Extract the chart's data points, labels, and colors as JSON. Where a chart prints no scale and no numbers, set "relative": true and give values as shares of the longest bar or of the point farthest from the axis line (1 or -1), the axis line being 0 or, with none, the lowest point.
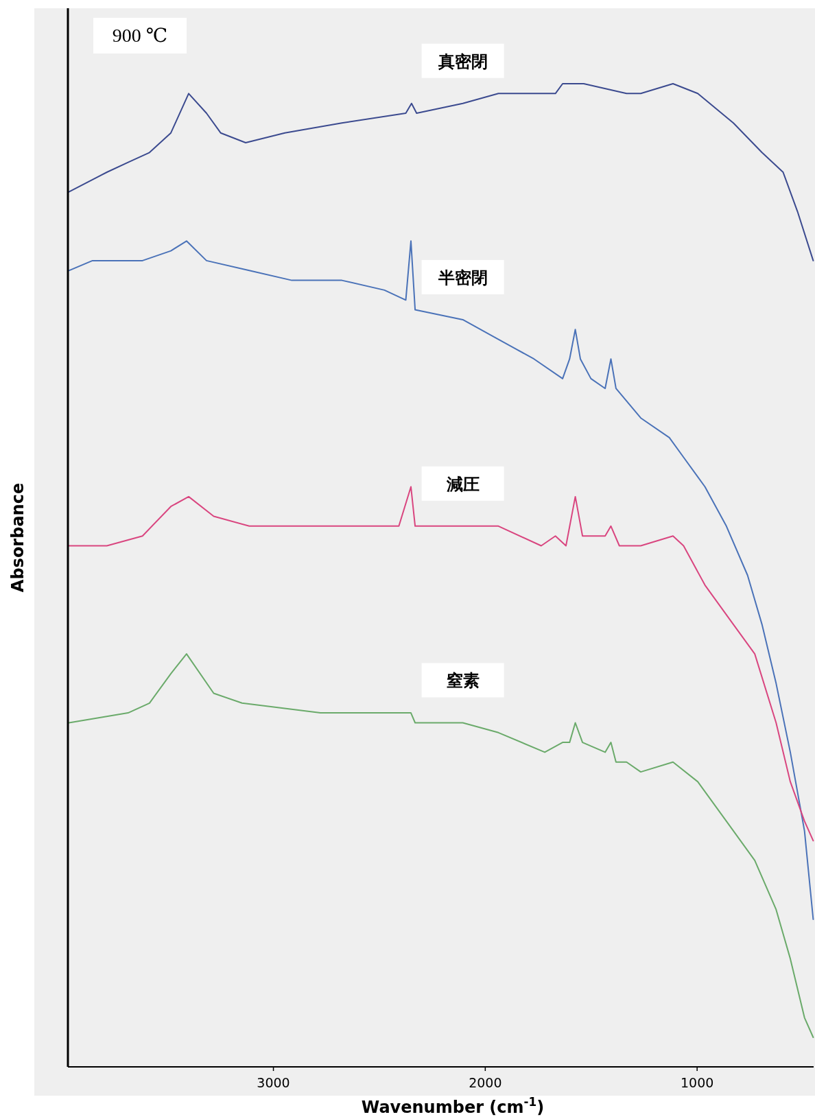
{
  "chart_data": {
    "type": "line",
    "relative": true,
    "xlabel": "Wavenumber (cm$^{-1}$)",
    "ylabel": "Absorbance",
    "annotations": [
      "900 ℃"
    ],
    "xlim": [
      3970,
      450
    ],
    "xticks": [
      3000,
      2000,
      1000
    ],
    "tick_labels": "x",
    "series": [
      {
        "name": "真密閉",
        "color": "#3b4a8f",
        "x": [
          3965,
          3786,
          3686,
          3585,
          3484,
          3400,
          3316,
          3249,
          3131,
          2946,
          2677,
          2375,
          2348,
          2324,
          2106,
          1938,
          1669,
          1635,
          1535,
          1333,
          1266,
          1114,
          997,
          829,
          694,
          594,
          526,
          452
        ],
        "values": [
          0.89,
          0.91,
          0.92,
          0.93,
          0.95,
          0.99,
          0.97,
          0.95,
          0.94,
          0.95,
          0.96,
          0.97,
          0.98,
          0.97,
          0.98,
          0.99,
          0.99,
          1.0,
          1.0,
          0.99,
          0.99,
          1.0,
          0.99,
          0.96,
          0.93,
          0.91,
          0.87,
          0.82
        ]
      },
      {
        "name": "半密閉",
        "color": "#4a72b8",
        "x": [
          3965,
          3854,
          3753,
          3618,
          3484,
          3410,
          3316,
          3114,
          2913,
          2677,
          2476,
          2375,
          2351,
          2331,
          2106,
          1938,
          1770,
          1635,
          1602,
          1575,
          1551,
          1501,
          1434,
          1407,
          1383,
          1266,
          1131,
          1064,
          963,
          862,
          762,
          694,
          627,
          560,
          493,
          452
        ],
        "values": [
          0.81,
          0.82,
          0.82,
          0.82,
          0.83,
          0.84,
          0.82,
          0.81,
          0.8,
          0.8,
          0.79,
          0.78,
          0.84,
          0.77,
          0.76,
          0.74,
          0.72,
          0.7,
          0.72,
          0.75,
          0.72,
          0.7,
          0.69,
          0.72,
          0.69,
          0.66,
          0.64,
          0.62,
          0.59,
          0.55,
          0.5,
          0.45,
          0.39,
          0.32,
          0.24,
          0.15
        ]
      },
      {
        "name": "減圧",
        "color": "#d9457f",
        "x": [
          3965,
          3786,
          3618,
          3484,
          3400,
          3282,
          3114,
          2778,
          2408,
          2351,
          2331,
          2106,
          1938,
          1736,
          1669,
          1619,
          1575,
          1541,
          1434,
          1407,
          1367,
          1266,
          1114,
          1064,
          963,
          829,
          728,
          627,
          560,
          493,
          452
        ],
        "values": [
          0.53,
          0.53,
          0.54,
          0.57,
          0.58,
          0.56,
          0.55,
          0.55,
          0.55,
          0.59,
          0.55,
          0.55,
          0.55,
          0.53,
          0.54,
          0.53,
          0.58,
          0.54,
          0.54,
          0.55,
          0.53,
          0.53,
          0.54,
          0.53,
          0.49,
          0.45,
          0.42,
          0.35,
          0.29,
          0.25,
          0.23
        ]
      },
      {
        "name": "窒素",
        "color": "#6aaa6a",
        "x": [
          3965,
          3686,
          3585,
          3484,
          3410,
          3282,
          3148,
          2778,
          2375,
          2351,
          2331,
          2106,
          1938,
          1719,
          1635,
          1602,
          1575,
          1541,
          1434,
          1407,
          1383,
          1333,
          1266,
          1114,
          997,
          862,
          728,
          627,
          560,
          493,
          452
        ],
        "values": [
          0.35,
          0.36,
          0.37,
          0.4,
          0.42,
          0.38,
          0.37,
          0.36,
          0.36,
          0.36,
          0.35,
          0.35,
          0.34,
          0.32,
          0.33,
          0.33,
          0.35,
          0.33,
          0.32,
          0.33,
          0.31,
          0.31,
          0.3,
          0.31,
          0.29,
          0.25,
          0.21,
          0.16,
          0.11,
          0.05,
          0.03
        ]
      }
    ]
  }
}
